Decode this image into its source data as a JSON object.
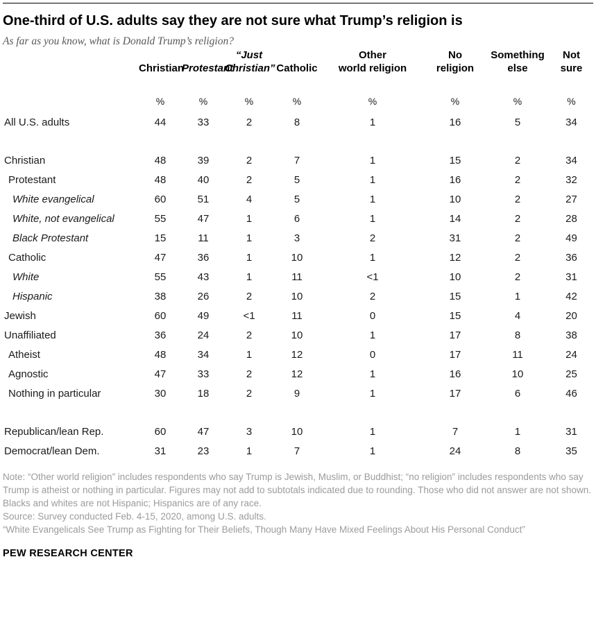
{
  "chart_data": {
    "type": "table",
    "title": "One-third of U.S. adults say they are not sure what Trump’s religion is",
    "subtitle": "As far as you know, what is Donald Trump’s religion?",
    "unit": "%",
    "columns": [
      {
        "label": "Christian",
        "lines": [
          "Christian"
        ],
        "italic": false
      },
      {
        "label": "Protestant",
        "lines": [
          "Protestant"
        ],
        "italic": true
      },
      {
        "label": "“Just Christian”",
        "lines": [
          "“Just",
          "Christian”"
        ],
        "italic": true
      },
      {
        "label": "Catholic",
        "lines": [
          "Catholic"
        ],
        "italic": false
      },
      {
        "label": "Other world religion",
        "lines": [
          "Other",
          "world religion"
        ],
        "italic": false
      },
      {
        "label": "No religion",
        "lines": [
          "No",
          "religion"
        ],
        "italic": false
      },
      {
        "label": "Something else",
        "lines": [
          "Something",
          "else"
        ],
        "italic": false
      },
      {
        "label": "Not sure",
        "lines": [
          "Not",
          "sure"
        ],
        "italic": false
      }
    ],
    "rows": [
      {
        "label": "All U.S. adults",
        "indent": 0,
        "italic": false,
        "values": [
          "44",
          "33",
          "2",
          "8",
          "1",
          "16",
          "5",
          "34"
        ]
      },
      {
        "type": "spacer"
      },
      {
        "label": "Christian",
        "indent": 0,
        "italic": false,
        "values": [
          "48",
          "39",
          "2",
          "7",
          "1",
          "15",
          "2",
          "34"
        ]
      },
      {
        "label": "Protestant",
        "indent": 1,
        "italic": false,
        "values": [
          "48",
          "40",
          "2",
          "5",
          "1",
          "16",
          "2",
          "32"
        ]
      },
      {
        "label": "White evangelical",
        "indent": 2,
        "italic": true,
        "values": [
          "60",
          "51",
          "4",
          "5",
          "1",
          "10",
          "2",
          "27"
        ]
      },
      {
        "label": "White, not evangelical",
        "indent": 2,
        "italic": true,
        "values": [
          "55",
          "47",
          "1",
          "6",
          "1",
          "14",
          "2",
          "28"
        ]
      },
      {
        "label": "Black Protestant",
        "indent": 2,
        "italic": true,
        "values": [
          "15",
          "11",
          "1",
          "3",
          "2",
          "31",
          "2",
          "49"
        ]
      },
      {
        "label": "Catholic",
        "indent": 1,
        "italic": false,
        "values": [
          "47",
          "36",
          "1",
          "10",
          "1",
          "12",
          "2",
          "36"
        ]
      },
      {
        "label": "White",
        "indent": 2,
        "italic": true,
        "values": [
          "55",
          "43",
          "1",
          "11",
          "<1",
          "10",
          "2",
          "31"
        ]
      },
      {
        "label": "Hispanic",
        "indent": 2,
        "italic": true,
        "values": [
          "38",
          "26",
          "2",
          "10",
          "2",
          "15",
          "1",
          "42"
        ]
      },
      {
        "label": "Jewish",
        "indent": 0,
        "italic": false,
        "values": [
          "60",
          "49",
          "<1",
          "11",
          "0",
          "15",
          "4",
          "20"
        ]
      },
      {
        "label": "Unaffiliated",
        "indent": 0,
        "italic": false,
        "values": [
          "36",
          "24",
          "2",
          "10",
          "1",
          "17",
          "8",
          "38"
        ]
      },
      {
        "label": "Atheist",
        "indent": 1,
        "italic": false,
        "values": [
          "48",
          "34",
          "1",
          "12",
          "0",
          "17",
          "11",
          "24"
        ]
      },
      {
        "label": "Agnostic",
        "indent": 1,
        "italic": false,
        "values": [
          "47",
          "33",
          "2",
          "12",
          "1",
          "16",
          "10",
          "25"
        ]
      },
      {
        "label": "Nothing in particular",
        "indent": 1,
        "italic": false,
        "values": [
          "30",
          "18",
          "2",
          "9",
          "1",
          "17",
          "6",
          "46"
        ]
      },
      {
        "type": "spacer"
      },
      {
        "label": "Republican/lean Rep.",
        "indent": 0,
        "italic": false,
        "values": [
          "60",
          "47",
          "3",
          "10",
          "1",
          "7",
          "1",
          "31"
        ]
      },
      {
        "label": "Democrat/lean Dem.",
        "indent": 0,
        "italic": false,
        "values": [
          "31",
          "23",
          "1",
          "7",
          "1",
          "24",
          "8",
          "35"
        ]
      }
    ]
  },
  "notes": [
    "Note: “Other world religion” includes respondents who say Trump is Jewish, Muslim, or Buddhist; “no religion” includes respondents who say Trump is atheist or nothing in particular. Figures may not add to subtotals indicated due to rounding. Those who did not answer are not shown. Blacks and whites are not Hispanic; Hispanics are of any race.",
    "Source: Survey conducted Feb. 4-15, 2020, among U.S. adults.",
    "“White Evangelicals See Trump as Fighting for Their Beliefs, Though Many Have Mixed Feelings About His Personal Conduct”"
  ],
  "footer": "PEW RESEARCH CENTER",
  "colors": {
    "rule": "#000000",
    "title_text": "#000000",
    "subtitle_text": "#58585a",
    "note_text": "#9b9b9b",
    "body_text": "#1a1a1a"
  }
}
